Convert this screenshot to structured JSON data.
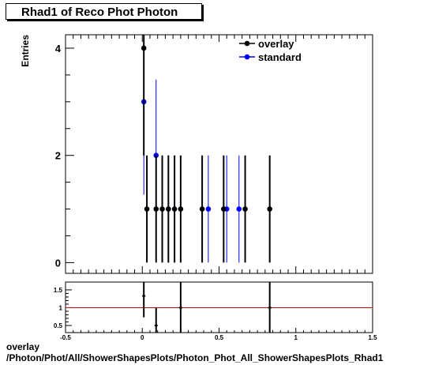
{
  "chart_data": [
    {
      "type": "scatter",
      "title": "Rhad1 of Reco Phot Photon",
      "ylabel": "Entries",
      "xlabel": "",
      "xlim": [
        -0.5,
        1.5
      ],
      "ylim": [
        -0.2,
        4.25
      ],
      "yticks": [
        0,
        2,
        4
      ],
      "legend": {
        "placement": "top-right",
        "entries": [
          "overlay",
          "standard"
        ]
      },
      "series": [
        {
          "name": "overlay",
          "color": "#000000",
          "x": [
            0.01,
            0.03,
            0.09,
            0.13,
            0.17,
            0.21,
            0.25,
            0.39,
            0.53,
            0.67,
            0.83
          ],
          "y": [
            4,
            1,
            1,
            1,
            1,
            1,
            1,
            1,
            1,
            1,
            1
          ]
        },
        {
          "name": "standard",
          "color": "#0000ff",
          "x": [
            0.01,
            0.09,
            0.17,
            0.43,
            0.55,
            0.63
          ],
          "y": [
            3,
            2,
            1,
            1,
            1,
            1
          ]
        }
      ]
    },
    {
      "type": "scatter",
      "xlim": [
        -0.5,
        1.5
      ],
      "ylim": [
        0.3,
        1.72
      ],
      "xticks": [
        "-0.5",
        "0",
        "0.5",
        "1",
        "1.5"
      ],
      "yticks": [
        "0.5",
        "1",
        "1.5"
      ],
      "reference_line": 1,
      "reference_color": "#cc0000",
      "series": [
        {
          "name": "",
          "x": [
            0.01,
            0.09,
            0.25,
            0.83
          ],
          "y": [
            1.33,
            0.5,
            1,
            1
          ]
        }
      ]
    }
  ],
  "footer": {
    "line1": "overlay",
    "line2": "/Photon/Phot/All/ShowerShapesPlots/Photon_Phot_All_ShowerShapesPlots_Rhad1"
  }
}
